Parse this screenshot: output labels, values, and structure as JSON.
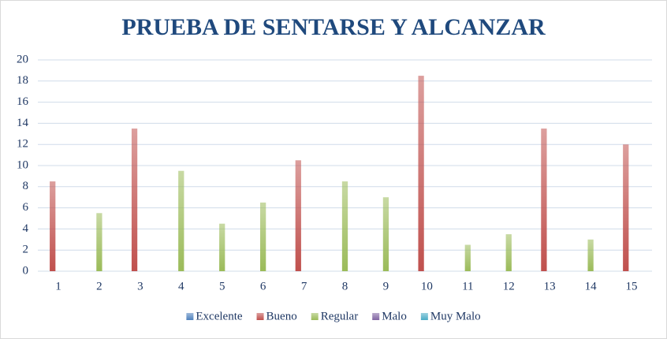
{
  "chart_data": {
    "type": "bar",
    "title": "PRUEBA DE SENTARSE Y ALCANZAR",
    "categories": [
      "1",
      "2",
      "3",
      "4",
      "5",
      "6",
      "7",
      "8",
      "9",
      "10",
      "11",
      "12",
      "13",
      "14",
      "15"
    ],
    "series": [
      {
        "name": "Excelente",
        "color": "#4f81bd",
        "values": [
          null,
          null,
          null,
          null,
          null,
          null,
          null,
          null,
          null,
          null,
          null,
          null,
          null,
          null,
          null
        ]
      },
      {
        "name": "Bueno",
        "color": "#c0504d",
        "values": [
          8.5,
          null,
          13.5,
          null,
          null,
          null,
          10.5,
          null,
          null,
          18.5,
          null,
          null,
          13.5,
          null,
          12
        ]
      },
      {
        "name": "Regular",
        "color": "#9bbb59",
        "values": [
          null,
          5.5,
          null,
          9.5,
          4.5,
          6.5,
          null,
          8.5,
          7,
          null,
          2.5,
          3.5,
          null,
          3,
          null
        ]
      },
      {
        "name": "Malo",
        "color": "#8064a2",
        "values": [
          null,
          null,
          null,
          null,
          null,
          null,
          null,
          null,
          null,
          null,
          null,
          null,
          null,
          null,
          null
        ]
      },
      {
        "name": "Muy Malo",
        "color": "#4bacc6",
        "values": [
          null,
          null,
          null,
          null,
          null,
          null,
          null,
          null,
          null,
          null,
          null,
          null,
          null,
          null,
          null
        ]
      }
    ],
    "ylim": [
      0,
      20
    ],
    "yticks": [
      0,
      2,
      4,
      6,
      8,
      10,
      12,
      14,
      16,
      18,
      20
    ],
    "grid": true,
    "legend": "bottom"
  }
}
